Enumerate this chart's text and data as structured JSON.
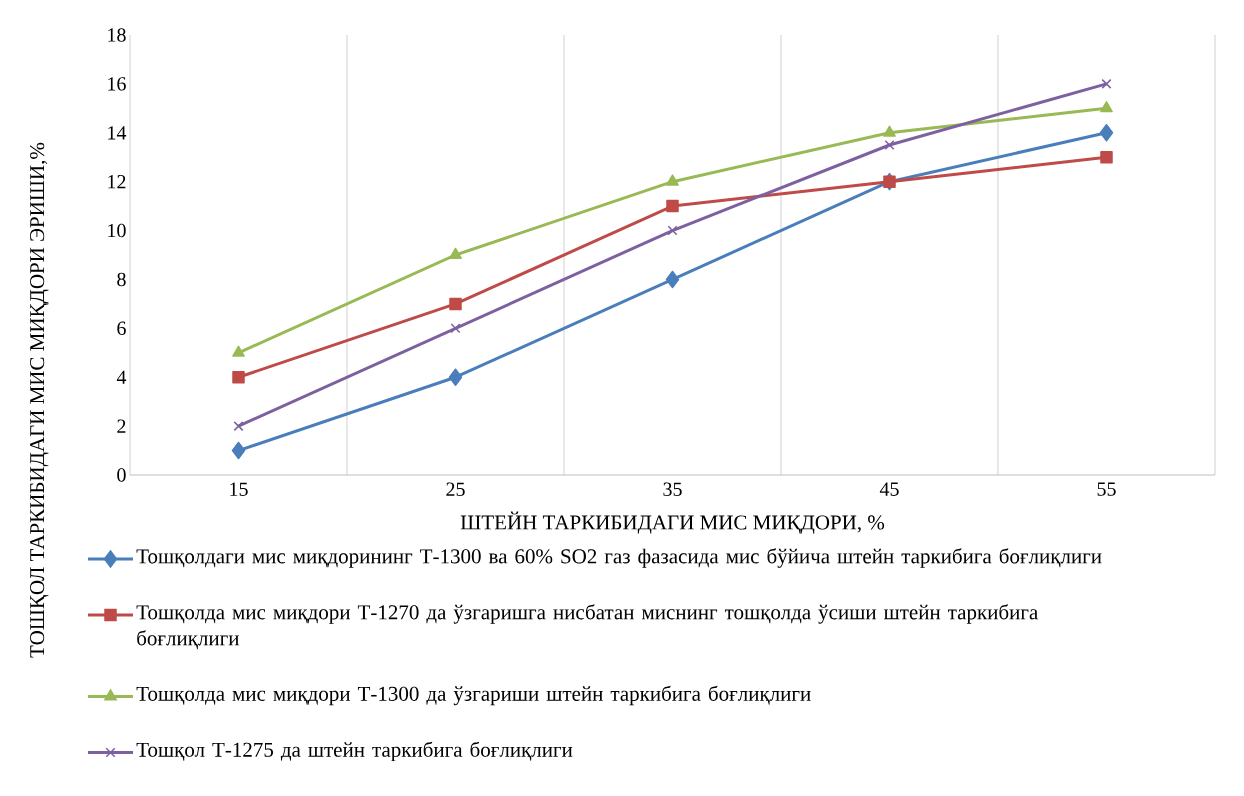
{
  "chart_data": {
    "type": "line",
    "xlabel": "ШТЕЙН ТАРКИБИДАГИ МИС МИҚДОРИ, %",
    "ylabel": "ТОШҚОЛ ТАРКИБИДАГИ МИС МИҚДОРИ ЭРИШИ,%",
    "categories": [
      "15",
      "25",
      "35",
      "45",
      "55"
    ],
    "series": [
      {
        "name": "Тошқолдаги мис миқдорининг Т-1300 ва 60% SO2 газ фазасида мис бўйича штейн таркибига боғлиқлиги",
        "color": "#4a7ebb",
        "marker": "diamond",
        "values": [
          1,
          4,
          8,
          12,
          14
        ]
      },
      {
        "name": "Тошқолда мис миқдори Т-1270 да ўзгаришга нисбатан миснинг тошқолда ўсиши штейн таркибига боғлиқлиги",
        "color": "#be4b48",
        "marker": "square",
        "values": [
          4,
          7,
          11,
          12,
          13
        ]
      },
      {
        "name": "Тошқолда мис миқдори Т-1300 да ўзгариши штейн таркибига боғлиқлиги",
        "color": "#98b954",
        "marker": "triangle",
        "values": [
          5,
          9,
          12,
          14,
          15
        ]
      },
      {
        "name": "Тошқол Т-1275 да штейн таркибига боғлиқлиги",
        "color": "#7d60a0",
        "marker": "cross",
        "values": [
          2,
          6,
          10,
          13.5,
          16
        ]
      }
    ],
    "ylim": [
      0,
      18
    ],
    "yticks": [
      0,
      2,
      4,
      6,
      8,
      10,
      12,
      14,
      16,
      18
    ],
    "grid": "x",
    "legend": "bottom",
    "line_style": "solid"
  }
}
